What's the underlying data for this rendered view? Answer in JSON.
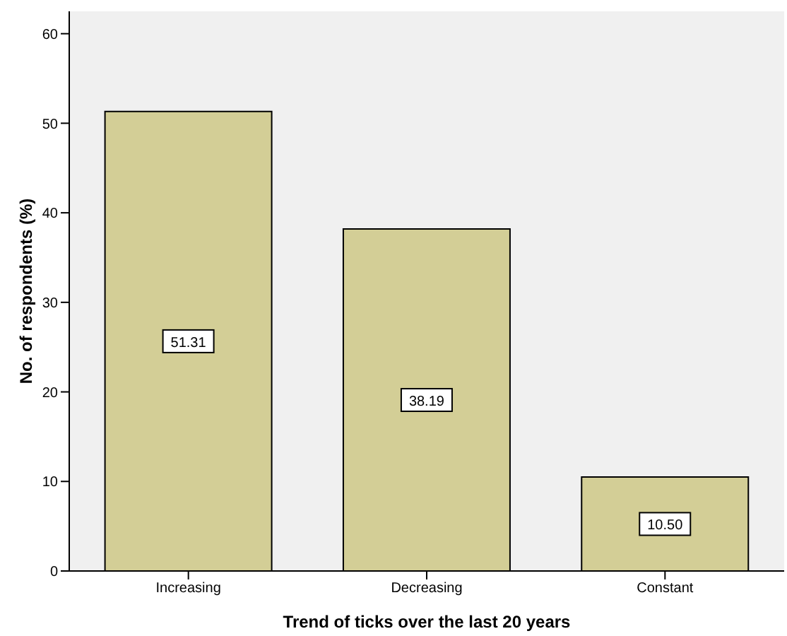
{
  "chart_data": {
    "type": "bar",
    "xlabel": "Trend of ticks over the last 20 years",
    "ylabel": "No. of respondents (%)",
    "categories": [
      "Increasing",
      "Decreasing",
      "Constant"
    ],
    "values": [
      51.31,
      38.19,
      10.5
    ],
    "value_labels": [
      "51.31",
      "38.19",
      "10.50"
    ],
    "color": "#d3ce96",
    "ylim": [
      0,
      62.5
    ],
    "yticks": [
      0,
      10,
      20,
      30,
      40,
      50,
      60
    ]
  }
}
